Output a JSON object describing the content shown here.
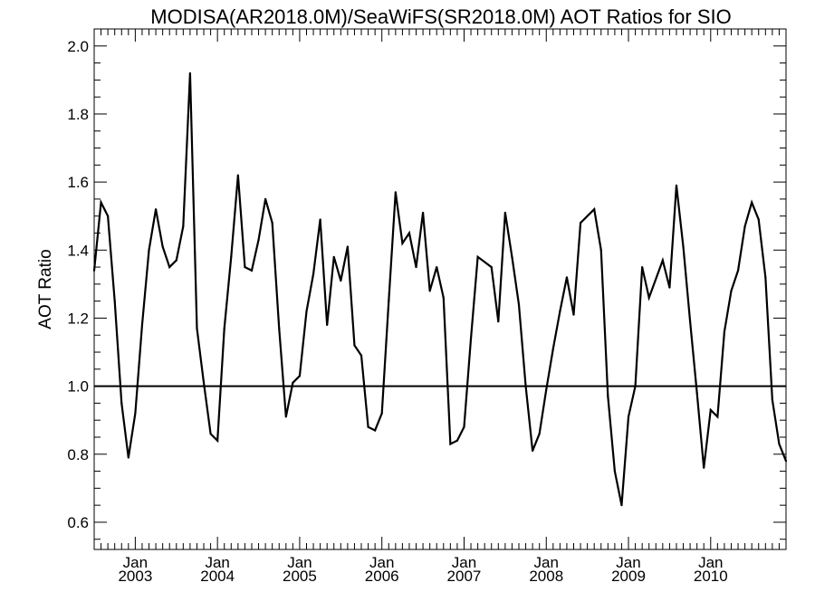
{
  "chart_data": {
    "type": "line",
    "title": "MODISA(AR2018.0M)/SeaWiFS(SR2018.0M)  AOT Ratios for SIO",
    "ylabel": "AOT Ratio",
    "xlabel": "",
    "ylim": [
      0.52,
      2.05
    ],
    "yticks": [
      0.6,
      0.8,
      1.0,
      1.2,
      1.4,
      1.6,
      1.8,
      2.0
    ],
    "ytick_labels": [
      "0.6",
      "0.8",
      "1.0",
      "1.2",
      "1.4",
      "1.6",
      "1.8",
      "2.0"
    ],
    "xlim": [
      "2002-07",
      "2010-12"
    ],
    "xticks": [
      {
        "date": "2003-01",
        "month": "Jan",
        "year": "2003"
      },
      {
        "date": "2004-01",
        "month": "Jan",
        "year": "2004"
      },
      {
        "date": "2005-01",
        "month": "Jan",
        "year": "2005"
      },
      {
        "date": "2006-01",
        "month": "Jan",
        "year": "2006"
      },
      {
        "date": "2007-01",
        "month": "Jan",
        "year": "2007"
      },
      {
        "date": "2008-01",
        "month": "Jan",
        "year": "2008"
      },
      {
        "date": "2009-01",
        "month": "Jan",
        "year": "2009"
      },
      {
        "date": "2010-01",
        "month": "Jan",
        "year": "2010"
      }
    ],
    "reference_line": 1.0,
    "grid": false,
    "series": [
      {
        "color": "#000000",
        "points": [
          [
            "2002-07",
            1.34
          ],
          [
            "2002-08",
            1.54
          ],
          [
            "2002-09",
            1.5
          ],
          [
            "2002-10",
            1.25
          ],
          [
            "2002-11",
            0.95
          ],
          [
            "2002-12",
            0.79
          ],
          [
            "2003-01",
            0.92
          ],
          [
            "2003-02",
            1.18
          ],
          [
            "2003-03",
            1.4
          ],
          [
            "2003-04",
            1.52
          ],
          [
            "2003-05",
            1.41
          ],
          [
            "2003-06",
            1.35
          ],
          [
            "2003-07",
            1.37
          ],
          [
            "2003-08",
            1.47
          ],
          [
            "2003-09",
            1.92
          ],
          [
            "2003-10",
            1.17
          ],
          [
            "2003-11",
            1.01
          ],
          [
            "2003-12",
            0.86
          ],
          [
            "2004-01",
            0.84
          ],
          [
            "2004-02",
            1.17
          ],
          [
            "2004-03",
            1.38
          ],
          [
            "2004-04",
            1.62
          ],
          [
            "2004-05",
            1.35
          ],
          [
            "2004-06",
            1.34
          ],
          [
            "2004-07",
            1.43
          ],
          [
            "2004-08",
            1.55
          ],
          [
            "2004-09",
            1.48
          ],
          [
            "2004-10",
            1.17
          ],
          [
            "2004-11",
            0.91
          ],
          [
            "2004-12",
            1.01
          ],
          [
            "2005-01",
            1.03
          ],
          [
            "2005-02",
            1.22
          ],
          [
            "2005-03",
            1.33
          ],
          [
            "2005-04",
            1.49
          ],
          [
            "2005-05",
            1.18
          ],
          [
            "2005-06",
            1.38
          ],
          [
            "2005-07",
            1.31
          ],
          [
            "2005-08",
            1.41
          ],
          [
            "2005-09",
            1.12
          ],
          [
            "2005-10",
            1.09
          ],
          [
            "2005-11",
            0.88
          ],
          [
            "2005-12",
            0.87
          ],
          [
            "2006-01",
            0.92
          ],
          [
            "2006-02",
            1.25
          ],
          [
            "2006-03",
            1.57
          ],
          [
            "2006-04",
            1.42
          ],
          [
            "2006-05",
            1.45
          ],
          [
            "2006-06",
            1.35
          ],
          [
            "2006-07",
            1.51
          ],
          [
            "2006-08",
            1.28
          ],
          [
            "2006-09",
            1.35
          ],
          [
            "2006-10",
            1.26
          ],
          [
            "2006-11",
            0.83
          ],
          [
            "2006-12",
            0.84
          ],
          [
            "2007-01",
            0.88
          ],
          [
            "2007-02",
            1.14
          ],
          [
            "2007-03",
            1.38
          ],
          [
            "2007-05",
            1.35
          ],
          [
            "2007-06",
            1.19
          ],
          [
            "2007-07",
            1.51
          ],
          [
            "2007-08",
            1.38
          ],
          [
            "2007-09",
            1.24
          ],
          [
            "2007-10",
            1.0
          ],
          [
            "2007-11",
            0.81
          ],
          [
            "2007-12",
            0.86
          ],
          [
            "2008-01",
            0.99
          ],
          [
            "2008-02",
            1.11
          ],
          [
            "2008-03",
            1.22
          ],
          [
            "2008-04",
            1.32
          ],
          [
            "2008-05",
            1.21
          ],
          [
            "2008-06",
            1.48
          ],
          [
            "2008-08",
            1.52
          ],
          [
            "2008-09",
            1.4
          ],
          [
            "2008-10",
            0.97
          ],
          [
            "2008-11",
            0.75
          ],
          [
            "2008-12",
            0.65
          ],
          [
            "2009-01",
            0.91
          ],
          [
            "2009-02",
            1.0
          ],
          [
            "2009-03",
            1.35
          ],
          [
            "2009-04",
            1.26
          ],
          [
            "2009-06",
            1.37
          ],
          [
            "2009-07",
            1.29
          ],
          [
            "2009-08",
            1.59
          ],
          [
            "2009-09",
            1.41
          ],
          [
            "2009-10",
            1.19
          ],
          [
            "2009-11",
            0.98
          ],
          [
            "2009-12",
            0.76
          ],
          [
            "2010-01",
            0.93
          ],
          [
            "2010-02",
            0.91
          ],
          [
            "2010-03",
            1.16
          ],
          [
            "2010-04",
            1.28
          ],
          [
            "2010-05",
            1.34
          ],
          [
            "2010-06",
            1.47
          ],
          [
            "2010-07",
            1.54
          ],
          [
            "2010-08",
            1.49
          ],
          [
            "2010-09",
            1.32
          ],
          [
            "2010-10",
            0.96
          ],
          [
            "2010-11",
            0.83
          ],
          [
            "2010-12",
            0.78
          ]
        ]
      }
    ]
  }
}
